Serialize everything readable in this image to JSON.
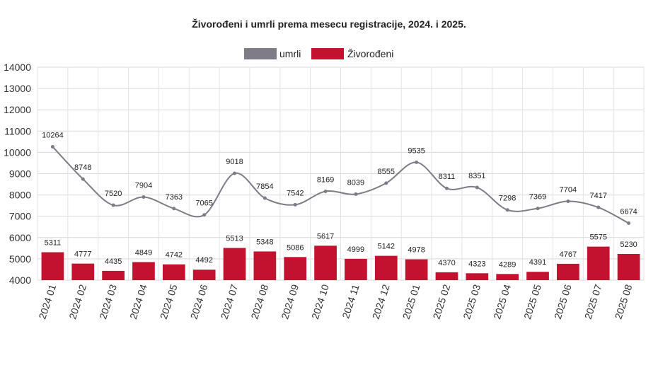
{
  "chart_data": {
    "type": "bar",
    "title": "Živorođeni i umrli  prema mesecu registracije, 2024. i 2025.",
    "categories": [
      "2024 01",
      "2024 02",
      "2024 03",
      "2024 04",
      "2024 05",
      "2024 06",
      "2024 07",
      "2024 08",
      "2024 09",
      "2024 10",
      "2024 11",
      "2024 12",
      "2025 01",
      "2025 02",
      "2025 03",
      "2025 04",
      "2025 05",
      "2025 06",
      "2025 07",
      "2025 08"
    ],
    "ylim": [
      4000,
      14000
    ],
    "yticks": [
      4000,
      5000,
      6000,
      7000,
      8000,
      9000,
      10000,
      11000,
      12000,
      13000,
      14000
    ],
    "grid": true,
    "legend_position": "top-center",
    "series": [
      {
        "name": "umrli",
        "type": "line",
        "color": "#7f7b87",
        "values": [
          10264,
          8748,
          7520,
          7904,
          7363,
          7065,
          9018,
          7854,
          7542,
          8169,
          8039,
          8555,
          9535,
          8311,
          8351,
          7298,
          7369,
          7704,
          7417,
          6674
        ]
      },
      {
        "name": "Živorođeni",
        "type": "bar",
        "color": "#c3122f",
        "values": [
          5311,
          4777,
          4435,
          4849,
          4742,
          4492,
          5513,
          5348,
          5086,
          5617,
          4999,
          5142,
          4978,
          4370,
          4323,
          4289,
          4391,
          4767,
          5575,
          5230
        ]
      }
    ]
  }
}
